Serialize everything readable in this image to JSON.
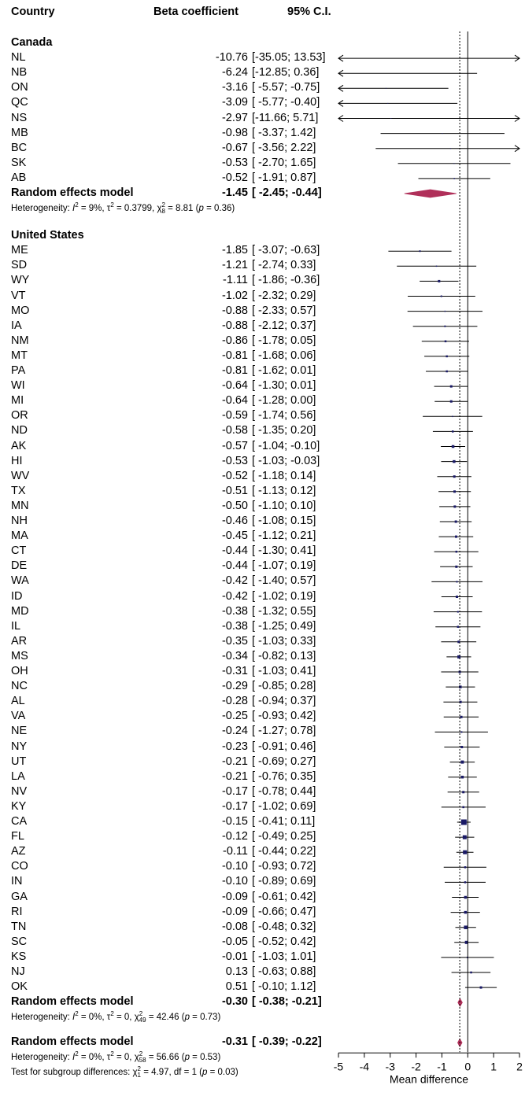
{
  "header": {
    "col_country": "Country",
    "col_beta": "Beta coefficient",
    "col_ci": "95% C.I."
  },
  "chart_data": {
    "type": "forest",
    "xlabel": "Mean difference",
    "xlim": [
      -5,
      2
    ],
    "x_ticks": [
      "-5",
      "-4",
      "-3",
      "-2",
      "-1",
      "0",
      "1",
      "2"
    ],
    "reference_line": 0,
    "overall_dotted_line": -0.31,
    "groups": [
      {
        "name": "Canada",
        "rows": [
          {
            "label": "NL",
            "est": "-10.76",
            "ci": "[-35.05; 13.53]",
            "e": -10.76,
            "lo": -35.05,
            "hi": 13.53,
            "w": 1
          },
          {
            "label": "NB",
            "est": "-6.24",
            "ci": "[-12.85; 0.36]",
            "e": -6.24,
            "lo": -12.85,
            "hi": 0.36,
            "w": 1
          },
          {
            "label": "ON",
            "est": "-3.16",
            "ci": "[ -5.57; -0.75]",
            "e": -3.16,
            "lo": -5.57,
            "hi": -0.75,
            "w": 1
          },
          {
            "label": "QC",
            "est": "-3.09",
            "ci": "[ -5.77; -0.40]",
            "e": -3.09,
            "lo": -5.77,
            "hi": -0.4,
            "w": 1
          },
          {
            "label": "NS",
            "est": "-2.97",
            "ci": "[-11.66; 5.71]",
            "e": -2.97,
            "lo": -11.66,
            "hi": 5.71,
            "w": 1
          },
          {
            "label": "MB",
            "est": "-0.98",
            "ci": "[ -3.37; 1.42]",
            "e": -0.98,
            "lo": -3.37,
            "hi": 1.42,
            "w": 1
          },
          {
            "label": "BC",
            "est": "-0.67",
            "ci": "[ -3.56; 2.22]",
            "e": -0.67,
            "lo": -3.56,
            "hi": 2.22,
            "w": 1
          },
          {
            "label": "SK",
            "est": "-0.53",
            "ci": "[ -2.70; 1.65]",
            "e": -0.53,
            "lo": -2.7,
            "hi": 1.65,
            "w": 1
          },
          {
            "label": "AB",
            "est": "-0.52",
            "ci": "[ -1.91; 0.87]",
            "e": -0.52,
            "lo": -1.91,
            "hi": 0.87,
            "w": 1.5
          }
        ],
        "summary": {
          "label": "Random effects model",
          "est": "-1.45",
          "ci": "[ -2.45; -0.44]",
          "e": -1.45,
          "lo": -2.45,
          "hi": -0.44
        },
        "heterogeneity": {
          "prefix": "Heterogeneity: ",
          "i2": "I",
          "i2_val": " = 9%, ",
          "tau": "τ",
          "tau_val": " = 0.3799, ",
          "chi": "χ",
          "chi_df": "8",
          "chi_val": " = 8.81 (",
          "p": "p",
          "p_val": " = 0.36)"
        }
      },
      {
        "name": "United States",
        "rows": [
          {
            "label": "ME",
            "est": "-1.85",
            "ci": "[ -3.07; -0.63]",
            "e": -1.85,
            "lo": -3.07,
            "hi": -0.63,
            "w": 2
          },
          {
            "label": "SD",
            "est": "-1.21",
            "ci": "[ -2.74; 0.33]",
            "e": -1.21,
            "lo": -2.74,
            "hi": 0.33,
            "w": 1.5
          },
          {
            "label": "WY",
            "est": "-1.11",
            "ci": "[ -1.86; -0.36]",
            "e": -1.11,
            "lo": -1.86,
            "hi": -0.36,
            "w": 3
          },
          {
            "label": "VT",
            "est": "-1.02",
            "ci": "[ -2.32; 0.29]",
            "e": -1.02,
            "lo": -2.32,
            "hi": 0.29,
            "w": 2
          },
          {
            "label": "MO",
            "est": "-0.88",
            "ci": "[ -2.33; 0.57]",
            "e": -0.88,
            "lo": -2.33,
            "hi": 0.57,
            "w": 1.5
          },
          {
            "label": "IA",
            "est": "-0.88",
            "ci": "[ -2.12; 0.37]",
            "e": -0.88,
            "lo": -2.12,
            "hi": 0.37,
            "w": 2
          },
          {
            "label": "NM",
            "est": "-0.86",
            "ci": "[ -1.78; 0.05]",
            "e": -0.86,
            "lo": -1.78,
            "hi": 0.05,
            "w": 2.5
          },
          {
            "label": "MT",
            "est": "-0.81",
            "ci": "[ -1.68; 0.06]",
            "e": -0.81,
            "lo": -1.68,
            "hi": 0.06,
            "w": 2.5
          },
          {
            "label": "PA",
            "est": "-0.81",
            "ci": "[ -1.62; 0.01]",
            "e": -0.81,
            "lo": -1.62,
            "hi": 0.01,
            "w": 2.5
          },
          {
            "label": "WI",
            "est": "-0.64",
            "ci": "[ -1.30; 0.01]",
            "e": -0.64,
            "lo": -1.3,
            "hi": 0.01,
            "w": 3
          },
          {
            "label": "MI",
            "est": "-0.64",
            "ci": "[ -1.28; 0.00]",
            "e": -0.64,
            "lo": -1.28,
            "hi": 0.0,
            "w": 3
          },
          {
            "label": "OR",
            "est": "-0.59",
            "ci": "[ -1.74; 0.56]",
            "e": -0.59,
            "lo": -1.74,
            "hi": 0.56,
            "w": 1.5
          },
          {
            "label": "ND",
            "est": "-0.58",
            "ci": "[ -1.35; 0.20]",
            "e": -0.58,
            "lo": -1.35,
            "hi": 0.2,
            "w": 2.5
          },
          {
            "label": "AK",
            "est": "-0.57",
            "ci": "[ -1.04; -0.10]",
            "e": -0.57,
            "lo": -1.04,
            "hi": -0.1,
            "w": 3.5
          },
          {
            "label": "HI",
            "est": "-0.53",
            "ci": "[ -1.03; -0.03]",
            "e": -0.53,
            "lo": -1.03,
            "hi": -0.03,
            "w": 3.5
          },
          {
            "label": "WV",
            "est": "-0.52",
            "ci": "[ -1.18; 0.14]",
            "e": -0.52,
            "lo": -1.18,
            "hi": 0.14,
            "w": 3
          },
          {
            "label": "TX",
            "est": "-0.51",
            "ci": "[ -1.13; 0.12]",
            "e": -0.51,
            "lo": -1.13,
            "hi": 0.12,
            "w": 3
          },
          {
            "label": "MN",
            "est": "-0.50",
            "ci": "[ -1.10; 0.10]",
            "e": -0.5,
            "lo": -1.1,
            "hi": 0.1,
            "w": 3
          },
          {
            "label": "NH",
            "est": "-0.46",
            "ci": "[ -1.08; 0.15]",
            "e": -0.46,
            "lo": -1.08,
            "hi": 0.15,
            "w": 3
          },
          {
            "label": "MA",
            "est": "-0.45",
            "ci": "[ -1.12; 0.21]",
            "e": -0.45,
            "lo": -1.12,
            "hi": 0.21,
            "w": 3
          },
          {
            "label": "CT",
            "est": "-0.44",
            "ci": "[ -1.30; 0.41]",
            "e": -0.44,
            "lo": -1.3,
            "hi": 0.41,
            "w": 2.5
          },
          {
            "label": "DE",
            "est": "-0.44",
            "ci": "[ -1.07; 0.19]",
            "e": -0.44,
            "lo": -1.07,
            "hi": 0.19,
            "w": 3
          },
          {
            "label": "WA",
            "est": "-0.42",
            "ci": "[ -1.40; 0.57]",
            "e": -0.42,
            "lo": -1.4,
            "hi": 0.57,
            "w": 2
          },
          {
            "label": "ID",
            "est": "-0.42",
            "ci": "[ -1.02; 0.19]",
            "e": -0.42,
            "lo": -1.02,
            "hi": 0.19,
            "w": 3
          },
          {
            "label": "MD",
            "est": "-0.38",
            "ci": "[ -1.32; 0.55]",
            "e": -0.38,
            "lo": -1.32,
            "hi": 0.55,
            "w": 2
          },
          {
            "label": "IL",
            "est": "-0.38",
            "ci": "[ -1.25; 0.49]",
            "e": -0.38,
            "lo": -1.25,
            "hi": 0.49,
            "w": 2.5
          },
          {
            "label": "AR",
            "est": "-0.35",
            "ci": "[ -1.03; 0.33]",
            "e": -0.35,
            "lo": -1.03,
            "hi": 0.33,
            "w": 3
          },
          {
            "label": "MS",
            "est": "-0.34",
            "ci": "[ -0.82; 0.13]",
            "e": -0.34,
            "lo": -0.82,
            "hi": 0.13,
            "w": 4
          },
          {
            "label": "OH",
            "est": "-0.31",
            "ci": "[ -1.03; 0.41]",
            "e": -0.31,
            "lo": -1.03,
            "hi": 0.41,
            "w": 3
          },
          {
            "label": "NC",
            "est": "-0.29",
            "ci": "[ -0.85; 0.28]",
            "e": -0.29,
            "lo": -0.85,
            "hi": 0.28,
            "w": 3.5
          },
          {
            "label": "AL",
            "est": "-0.28",
            "ci": "[ -0.94; 0.37]",
            "e": -0.28,
            "lo": -0.94,
            "hi": 0.37,
            "w": 3
          },
          {
            "label": "VA",
            "est": "-0.25",
            "ci": "[ -0.93; 0.42]",
            "e": -0.25,
            "lo": -0.93,
            "hi": 0.42,
            "w": 3
          },
          {
            "label": "NE",
            "est": "-0.24",
            "ci": "[ -1.27; 0.78]",
            "e": -0.24,
            "lo": -1.27,
            "hi": 0.78,
            "w": 2
          },
          {
            "label": "NY",
            "est": "-0.23",
            "ci": "[ -0.91; 0.46]",
            "e": -0.23,
            "lo": -0.91,
            "hi": 0.46,
            "w": 3
          },
          {
            "label": "UT",
            "est": "-0.21",
            "ci": "[ -0.69; 0.27]",
            "e": -0.21,
            "lo": -0.69,
            "hi": 0.27,
            "w": 4
          },
          {
            "label": "LA",
            "est": "-0.21",
            "ci": "[ -0.76; 0.35]",
            "e": -0.21,
            "lo": -0.76,
            "hi": 0.35,
            "w": 3.5
          },
          {
            "label": "NV",
            "est": "-0.17",
            "ci": "[ -0.78; 0.44]",
            "e": -0.17,
            "lo": -0.78,
            "hi": 0.44,
            "w": 3
          },
          {
            "label": "KY",
            "est": "-0.17",
            "ci": "[ -1.02; 0.69]",
            "e": -0.17,
            "lo": -1.02,
            "hi": 0.69,
            "w": 2.5
          },
          {
            "label": "CA",
            "est": "-0.15",
            "ci": "[ -0.41; 0.11]",
            "e": -0.15,
            "lo": -0.41,
            "hi": 0.11,
            "w": 7
          },
          {
            "label": "FL",
            "est": "-0.12",
            "ci": "[ -0.49; 0.25]",
            "e": -0.12,
            "lo": -0.49,
            "hi": 0.25,
            "w": 5
          },
          {
            "label": "AZ",
            "est": "-0.11",
            "ci": "[ -0.44; 0.22]",
            "e": -0.11,
            "lo": -0.44,
            "hi": 0.22,
            "w": 5
          },
          {
            "label": "CO",
            "est": "-0.10",
            "ci": "[ -0.93; 0.72]",
            "e": -0.1,
            "lo": -0.93,
            "hi": 0.72,
            "w": 2.5
          },
          {
            "label": "IN",
            "est": "-0.10",
            "ci": "[ -0.89; 0.69]",
            "e": -0.1,
            "lo": -0.89,
            "hi": 0.69,
            "w": 2.5
          },
          {
            "label": "GA",
            "est": "-0.09",
            "ci": "[ -0.61; 0.42]",
            "e": -0.09,
            "lo": -0.61,
            "hi": 0.42,
            "w": 3.5
          },
          {
            "label": "RI",
            "est": "-0.09",
            "ci": "[ -0.66; 0.47]",
            "e": -0.09,
            "lo": -0.66,
            "hi": 0.47,
            "w": 3.5
          },
          {
            "label": "TN",
            "est": "-0.08",
            "ci": "[ -0.48; 0.32]",
            "e": -0.08,
            "lo": -0.48,
            "hi": 0.32,
            "w": 4.5
          },
          {
            "label": "SC",
            "est": "-0.05",
            "ci": "[ -0.52; 0.42]",
            "e": -0.05,
            "lo": -0.52,
            "hi": 0.42,
            "w": 4
          },
          {
            "label": "KS",
            "est": "-0.01",
            "ci": "[ -1.03; 1.01]",
            "e": -0.01,
            "lo": -1.03,
            "hi": 1.01,
            "w": 2
          },
          {
            "label": "NJ",
            "est": "0.13",
            "ci": "[ -0.63; 0.88]",
            "e": 0.13,
            "lo": -0.63,
            "hi": 0.88,
            "w": 2.5
          },
          {
            "label": "OK",
            "est": "0.51",
            "ci": "[ -0.10; 1.12]",
            "e": 0.51,
            "lo": -0.1,
            "hi": 1.12,
            "w": 3
          }
        ],
        "summary": {
          "label": "Random effects model",
          "est": "-0.30",
          "ci": "[ -0.38; -0.21]",
          "e": -0.3,
          "lo": -0.38,
          "hi": -0.21
        },
        "heterogeneity": {
          "prefix": "Heterogeneity: ",
          "i2": "I",
          "i2_val": " = 0%, ",
          "tau": "τ",
          "tau_val": " = 0, ",
          "chi": "χ",
          "chi_df": "49",
          "chi_val": " = 42.46 (",
          "p": "p",
          "p_val": " = 0.73)"
        }
      }
    ],
    "overall": {
      "label": "Random effects model",
      "est": "-0.31",
      "ci": "[ -0.39; -0.22]",
      "e": -0.31,
      "lo": -0.39,
      "hi": -0.22,
      "heterogeneity": {
        "prefix": "Heterogeneity: ",
        "i2": "I",
        "i2_val": " = 0%, ",
        "tau": "τ",
        "tau_val": " = 0, ",
        "chi": "χ",
        "chi_df": "58",
        "chi_val": " = 56.66 (",
        "p": "p",
        "p_val": " = 0.53)"
      },
      "subgroup_test": {
        "prefix": "Test for subgroup differences: ",
        "chi": "χ",
        "chi_df": "1",
        "chi_val": " = 4.97, df = 1 (",
        "p": "p",
        "p_val": " = 0.03)"
      }
    },
    "colors": {
      "square": "#1a1a66",
      "diamond": "#b0305a",
      "line": "#000000"
    }
  }
}
